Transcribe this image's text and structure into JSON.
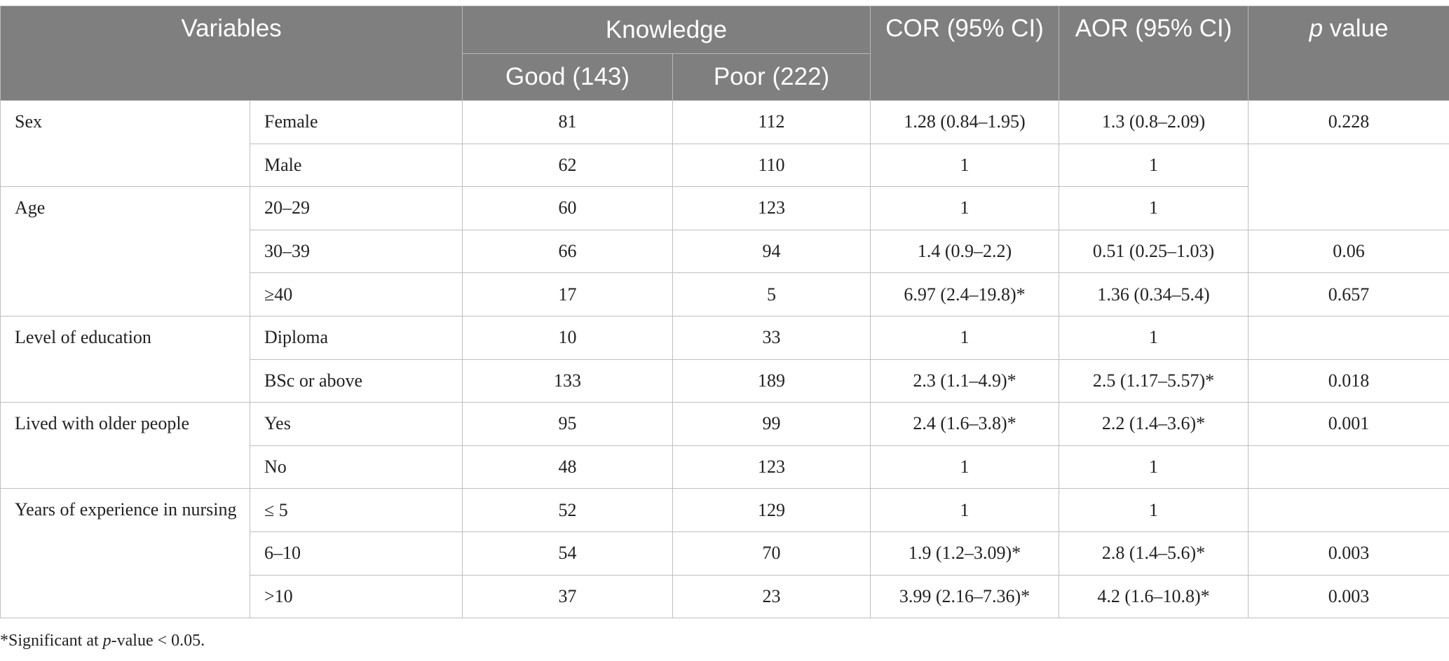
{
  "header": {
    "variables": "Variables",
    "knowledge": "Knowledge",
    "good": "Good (143)",
    "poor": "Poor (222)",
    "cor": "COR (95% CI)",
    "aor": "AOR (95% CI)",
    "p_italic": "p",
    "p_rest": " value"
  },
  "groups": [
    {
      "label": "Sex",
      "rows": [
        {
          "sub": "Female",
          "good": "81",
          "poor": "112",
          "cor": "1.28 (0.84–1.95)",
          "aor": "1.3 (0.8–2.09)",
          "p": "0.228"
        },
        {
          "sub": "Male",
          "good": "62",
          "poor": "110",
          "cor": "1",
          "aor": "1",
          "p": ""
        }
      ]
    },
    {
      "label": "Age",
      "rows": [
        {
          "sub": "20–29",
          "good": "60",
          "poor": "123",
          "cor": "1",
          "aor": "1",
          "p": ""
        },
        {
          "sub": "30–39",
          "good": "66",
          "poor": "94",
          "cor": "1.4 (0.9–2.2)",
          "aor": "0.51 (0.25–1.03)",
          "p": "0.06"
        },
        {
          "sub": "≥40",
          "good": "17",
          "poor": "5",
          "cor": "6.97 (2.4–19.8)*",
          "aor": "1.36 (0.34–5.4)",
          "p": "0.657"
        }
      ]
    },
    {
      "label": "Level of education",
      "rows": [
        {
          "sub": "Diploma",
          "good": "10",
          "poor": "33",
          "cor": "1",
          "aor": "1",
          "p": ""
        },
        {
          "sub": "BSc or above",
          "good": "133",
          "poor": "189",
          "cor": "2.3 (1.1–4.9)*",
          "aor": "2.5 (1.17–5.57)*",
          "p": "0.018"
        }
      ]
    },
    {
      "label": "Lived with older people",
      "rows": [
        {
          "sub": "Yes",
          "good": "95",
          "poor": "99",
          "cor": "2.4 (1.6–3.8)*",
          "aor": "2.2 (1.4–3.6)*",
          "p": "0.001"
        },
        {
          "sub": "No",
          "good": "48",
          "poor": "123",
          "cor": "1",
          "aor": "1",
          "p": ""
        }
      ]
    },
    {
      "label": "Years of experience in nursing",
      "rows": [
        {
          "sub": "≤ 5",
          "good": "52",
          "poor": "129",
          "cor": "1",
          "aor": "1",
          "p": ""
        },
        {
          "sub": "6–10",
          "good": "54",
          "poor": "70",
          "cor": "1.9 (1.2–3.09)*",
          "aor": "2.8 (1.4–5.6)*",
          "p": "0.003"
        },
        {
          "sub": ">10",
          "good": "37",
          "poor": "23",
          "cor": "3.99 (2.16–7.36)*",
          "aor": "4.2 (1.6–10.8)*",
          "p": "0.003"
        }
      ]
    }
  ],
  "footnote": {
    "lead": "*Significant at ",
    "p_italic": "p",
    "rest": "-value < 0.05."
  }
}
